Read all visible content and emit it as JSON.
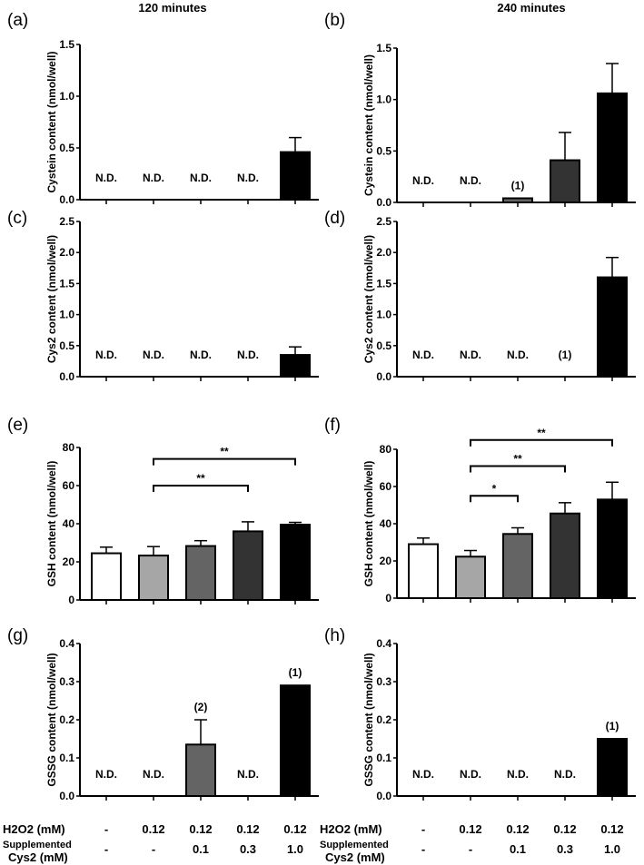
{
  "titles": [
    "120 minutes",
    "240 minutes"
  ],
  "bar_colors": [
    "#ffffff",
    "#a6a6a6",
    "#646464",
    "#333333",
    "#000000"
  ],
  "conditions": {
    "h2o2_label": "H2O2 (mM)",
    "h2o2_values": [
      "-",
      "0.12",
      "0.12",
      "0.12",
      "0.12"
    ],
    "cys2_label_line1": "Supplemented",
    "cys2_label_line2": "Cys2 (mM)",
    "cys2_values": [
      "-",
      "-",
      "0.1",
      "0.3",
      "1.0"
    ]
  },
  "chart_data": [
    {
      "panel": "(a)",
      "type": "bar",
      "ylabel": "Cystein content (nmol/well)",
      "ylim": [
        0,
        1.5
      ],
      "yticks": [
        "0.0",
        "0.5",
        "1.0",
        "1.5"
      ],
      "tickstep": 0.5,
      "values": [
        null,
        null,
        null,
        null,
        0.46
      ],
      "errors": [
        null,
        null,
        null,
        null,
        0.14
      ],
      "notes": [
        "N.D.",
        "N.D.",
        "N.D.",
        "N.D.",
        ""
      ],
      "brackets": []
    },
    {
      "panel": "(b)",
      "type": "bar",
      "ylabel": "Cystein content (nmol/well)",
      "ylim": [
        0,
        1.5
      ],
      "yticks": [
        "0.0",
        "0.5",
        "1.0",
        "1.5"
      ],
      "tickstep": 0.5,
      "values": [
        null,
        null,
        0.04,
        0.41,
        1.06
      ],
      "errors": [
        null,
        null,
        0,
        0.27,
        0.29
      ],
      "notes": [
        "N.D.",
        "N.D.",
        "(1)",
        "",
        ""
      ],
      "brackets": []
    },
    {
      "panel": "(c)",
      "type": "bar",
      "ylabel": "Cys2 content (nmol/well)",
      "ylim": [
        0,
        2.5
      ],
      "yticks": [
        "0.0",
        "0.5",
        "1.0",
        "1.5",
        "2.0",
        "2.5"
      ],
      "tickstep": 0.5,
      "values": [
        null,
        null,
        null,
        null,
        0.35
      ],
      "errors": [
        null,
        null,
        null,
        null,
        0.13
      ],
      "notes": [
        "N.D.",
        "N.D.",
        "N.D.",
        "N.D.",
        ""
      ],
      "brackets": []
    },
    {
      "panel": "(d)",
      "type": "bar",
      "ylabel": "Cys2 content (nmol/well)",
      "ylim": [
        0,
        2.5
      ],
      "yticks": [
        "0.0",
        "0.5",
        "1.0",
        "1.5",
        "2.0",
        "2.5"
      ],
      "tickstep": 0.5,
      "values": [
        null,
        null,
        null,
        0,
        1.6
      ],
      "errors": [
        null,
        null,
        null,
        0,
        0.32
      ],
      "notes": [
        "N.D.",
        "N.D.",
        "N.D.",
        "(1)",
        ""
      ],
      "brackets": []
    },
    {
      "panel": "(e)",
      "type": "bar",
      "ylabel": "GSH content (nmol/well)",
      "ylim": [
        0,
        80
      ],
      "yticks": [
        "0",
        "20",
        "40",
        "60",
        "80"
      ],
      "tickstep": 20,
      "values": [
        24.5,
        23.3,
        28.3,
        36.0,
        39.5
      ],
      "errors": [
        3.2,
        4.7,
        2.8,
        5.0,
        1.2
      ],
      "notes": [
        "",
        "",
        "",
        "",
        ""
      ],
      "brackets": [
        {
          "from": 2,
          "to": 4,
          "level": 60,
          "label": "**"
        },
        {
          "from": 2,
          "to": 5,
          "level": 74,
          "label": "**"
        }
      ]
    },
    {
      "panel": "(f)",
      "type": "bar",
      "ylabel": "GSH content (nmol/well)",
      "ylim": [
        0,
        80
      ],
      "yticks": [
        "0",
        "20",
        "40",
        "60",
        "80"
      ],
      "tickstep": 20,
      "values": [
        29.0,
        22.3,
        34.5,
        45.5,
        53.0
      ],
      "errors": [
        3.3,
        3.3,
        3.3,
        5.8,
        9.3
      ],
      "notes": [
        "",
        "",
        "",
        "",
        ""
      ],
      "brackets": [
        {
          "from": 2,
          "to": 3,
          "level": 55,
          "label": "*"
        },
        {
          "from": 2,
          "to": 4,
          "level": 71,
          "label": "**"
        },
        {
          "from": 2,
          "to": 5,
          "level": 85,
          "label": "**"
        }
      ]
    },
    {
      "panel": "(g)",
      "type": "bar",
      "ylabel": "GSSG content (nmol/well)",
      "ylim": [
        0,
        0.4
      ],
      "yticks": [
        "0.0",
        "0.1",
        "0.2",
        "0.3",
        "0.4"
      ],
      "tickstep": 0.1,
      "values": [
        null,
        null,
        0.135,
        null,
        0.29
      ],
      "errors": [
        null,
        null,
        0.065,
        null,
        0
      ],
      "notes": [
        "N.D.",
        "N.D.",
        "(2)",
        "N.D.",
        "(1)"
      ],
      "brackets": []
    },
    {
      "panel": "(h)",
      "type": "bar",
      "ylabel": "GSSG content (nmol/well)",
      "ylim": [
        0,
        0.4
      ],
      "yticks": [
        "0.0",
        "0.1",
        "0.2",
        "0.3",
        "0.4"
      ],
      "tickstep": 0.1,
      "values": [
        null,
        null,
        null,
        null,
        0.15
      ],
      "errors": [
        null,
        null,
        null,
        null,
        0
      ],
      "notes": [
        "N.D.",
        "N.D.",
        "N.D.",
        "N.D.",
        "(1)"
      ],
      "brackets": []
    }
  ]
}
